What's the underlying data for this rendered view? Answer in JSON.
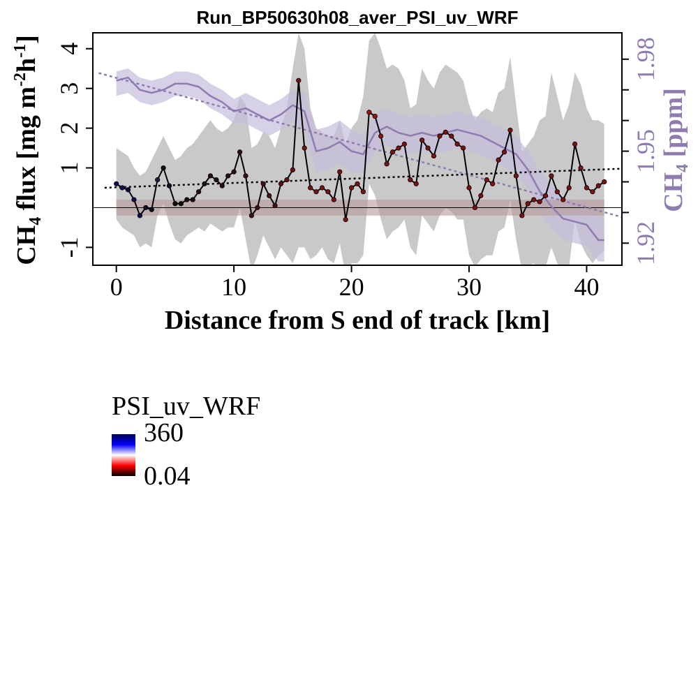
{
  "chart_data": {
    "type": "line",
    "title": "Run_BP50630h08_aver_PSI_uv_WRF",
    "xlabel": "Distance from S end of track [km]",
    "ylabel": "CH4 flux [mg m-2h-1]",
    "ylabel_parts": {
      "a": "CH",
      "a_sub": "4",
      "b": " flux [mg m",
      "b_sup": "-2",
      "c": "h",
      "c_sup": "-1",
      "d": "]"
    },
    "y2label": "CH4 [ppm]",
    "y2label_parts": {
      "a": "CH",
      "a_sub": "4",
      "b": " [ppm]"
    },
    "xlim": [
      -2,
      43
    ],
    "ylim": [
      -1.45,
      4.4
    ],
    "y2lim": [
      1.9128,
      1.9886
    ],
    "xticks": [
      "0",
      "10",
      "20",
      "30",
      "40"
    ],
    "xtick_values": [
      0,
      10,
      20,
      30,
      40
    ],
    "yticks": [
      "-1",
      "1",
      "2",
      "3",
      "4"
    ],
    "ytick_values": [
      -1,
      1,
      2,
      3,
      4
    ],
    "y2ticks": [
      "1.92",
      "1.95",
      "1.98"
    ],
    "y2tick_values": [
      1.92,
      1.95,
      1.98
    ],
    "grid": false,
    "series": [
      {
        "role": "flux",
        "x": [
          0,
          0.5,
          1,
          1.5,
          2,
          2.5,
          3,
          3.5,
          4,
          4.5,
          5,
          5.5,
          6,
          6.5,
          7,
          7.5,
          8,
          8.5,
          9,
          9.5,
          10,
          10.5,
          11,
          11.5,
          12,
          12.5,
          13,
          13.5,
          14,
          14.5,
          15,
          15.5,
          16,
          16.5,
          17,
          17.5,
          18,
          18.5,
          19,
          19.5,
          20,
          20.5,
          21,
          21.5,
          22,
          22.5,
          23,
          23.5,
          24,
          24.5,
          25,
          25.5,
          26,
          26.5,
          27,
          27.5,
          28,
          28.5,
          29,
          29.5,
          30,
          30.5,
          31,
          31.5,
          32,
          32.5,
          33,
          33.5,
          34,
          34.5,
          35,
          35.5,
          36,
          36.5,
          37,
          37.5,
          38,
          38.5,
          39,
          39.5,
          40,
          40.5,
          41,
          41.5
        ],
        "values": [
          0.6,
          0.5,
          0.45,
          0.2,
          -0.2,
          0.0,
          -0.05,
          0.7,
          1.0,
          0.55,
          0.1,
          0.1,
          0.2,
          0.2,
          0.4,
          0.6,
          0.8,
          0.7,
          0.55,
          0.8,
          0.9,
          1.4,
          0.8,
          -0.2,
          0.0,
          0.6,
          0.3,
          0.05,
          0.6,
          0.7,
          0.95,
          3.2,
          1.5,
          0.5,
          0.4,
          0.5,
          0.4,
          0.2,
          0.9,
          -0.3,
          0.5,
          0.6,
          0.4,
          2.4,
          2.3,
          1.8,
          1.1,
          1.4,
          1.5,
          1.6,
          0.7,
          0.6,
          1.7,
          1.5,
          1.3,
          1.8,
          1.9,
          1.8,
          1.6,
          1.5,
          0.5,
          0.0,
          0.3,
          0.7,
          0.6,
          1.2,
          1.4,
          1.95,
          0.8,
          -0.2,
          0.1,
          0.2,
          0.15,
          0.3,
          0.8,
          0.4,
          0.2,
          0.5,
          1.6,
          1.0,
          0.5,
          0.4,
          0.55,
          0.65
        ],
        "psi_colors": [
          "#0c0c5c",
          "#101060",
          "#0a0a3a",
          "#0c0c50",
          "#0c0c50",
          "#0a0a30",
          "#080820",
          "#202040",
          "#101020",
          "#101020",
          "#101010",
          "#101010",
          "#181010",
          "#181010",
          "#201010",
          "#201010",
          "#201010",
          "#201010",
          "#281010",
          "#281010",
          "#301010",
          "#301010",
          "#381010",
          "#401010",
          "#401010",
          "#481010",
          "#501010",
          "#501010",
          "#601010",
          "#681010",
          "#701010",
          "#781010",
          "#801010",
          "#801010",
          "#801010",
          "#801010",
          "#801010",
          "#801010",
          "#801010",
          "#801010",
          "#801010",
          "#801010",
          "#801010",
          "#a01010",
          "#a01010",
          "#901010",
          "#801010",
          "#801010",
          "#801010",
          "#801010",
          "#801010",
          "#801010",
          "#801010",
          "#801010",
          "#801010",
          "#801010",
          "#801010",
          "#801010",
          "#801010",
          "#801010",
          "#801010",
          "#801010",
          "#801010",
          "#801010",
          "#801010",
          "#801010",
          "#801010",
          "#801010",
          "#801010",
          "#801010",
          "#801010",
          "#801010",
          "#801010",
          "#801010",
          "#801010",
          "#801010",
          "#801010",
          "#801010",
          "#801010",
          "#801010",
          "#801010",
          "#801010",
          "#801010",
          "#801010"
        ],
        "upper": [
          1.5,
          1.4,
          1.3,
          1.0,
          0.8,
          0.9,
          1.2,
          1.5,
          1.8,
          1.5,
          1.2,
          1.3,
          1.5,
          1.6,
          1.8,
          2.0,
          2.2,
          2.0,
          1.9,
          2.0,
          2.2,
          2.8,
          2.6,
          1.5,
          1.6,
          1.9,
          1.8,
          1.5,
          2.0,
          2.5,
          3.5,
          4.4,
          4.0,
          2.5,
          2.0,
          1.9,
          1.8,
          1.8,
          2.2,
          1.6,
          2.0,
          2.2,
          2.8,
          4.2,
          4.4,
          4.0,
          3.5,
          3.6,
          3.5,
          3.2,
          2.5,
          2.6,
          3.5,
          3.2,
          3.0,
          3.4,
          3.6,
          3.5,
          3.4,
          3.2,
          2.6,
          2.2,
          2.4,
          2.5,
          2.4,
          2.9,
          3.0,
          3.8,
          2.6,
          1.4,
          1.6,
          1.8,
          2.2,
          2.3,
          3.4,
          2.8,
          2.2,
          2.6,
          3.4,
          3.1,
          2.5,
          2.2,
          2.2,
          2.1
        ],
        "lower": [
          -0.3,
          -0.5,
          -0.6,
          -0.7,
          -1.0,
          -0.9,
          -1.0,
          -0.2,
          0.1,
          -0.4,
          -0.8,
          -0.9,
          -0.7,
          -0.6,
          -0.5,
          -0.6,
          -0.4,
          -0.5,
          -0.6,
          -0.5,
          -0.5,
          0.0,
          -0.8,
          -1.6,
          -1.2,
          -0.7,
          -1.0,
          -1.3,
          -1.0,
          -1.2,
          -1.4,
          -1.0,
          -1.0,
          -1.3,
          -1.2,
          -1.0,
          -1.3,
          -1.4,
          -0.9,
          -1.7,
          -1.4,
          -1.4,
          -1.2,
          0.6,
          0.3,
          -0.3,
          -0.8,
          -0.6,
          -0.5,
          -0.3,
          -1.0,
          -1.2,
          -0.2,
          -0.4,
          -0.6,
          -0.2,
          0.0,
          -0.1,
          -0.3,
          -0.3,
          -1.2,
          -1.5,
          -1.3,
          -1.2,
          -1.2,
          -0.6,
          -0.5,
          0.2,
          -0.8,
          -1.6,
          -1.5,
          -1.4,
          -1.6,
          -1.5,
          -1.0,
          -1.4,
          -1.8,
          -1.5,
          -0.3,
          -0.9,
          -1.2,
          -1.4,
          -1.2,
          -1.1
        ]
      },
      {
        "role": "ch4_concentration",
        "axis": "right",
        "x": [
          0,
          1,
          2,
          3,
          4,
          5,
          6,
          7,
          8,
          9,
          10,
          11,
          12,
          13,
          14,
          15,
          16,
          17,
          18,
          19,
          20,
          21,
          22,
          23,
          24,
          25,
          26,
          27,
          28,
          29,
          30,
          31,
          32,
          33,
          34,
          35,
          36,
          37,
          38,
          39,
          40,
          41,
          41.5
        ],
        "values": [
          1.973,
          1.974,
          1.97,
          1.969,
          1.97,
          1.972,
          1.972,
          1.971,
          1.968,
          1.966,
          1.963,
          1.964,
          1.962,
          1.96,
          1.962,
          1.965,
          1.963,
          1.95,
          1.951,
          1.953,
          1.95,
          1.949,
          1.956,
          1.958,
          1.956,
          1.955,
          1.956,
          1.955,
          1.956,
          1.957,
          1.956,
          1.955,
          1.953,
          1.951,
          1.949,
          1.944,
          1.937,
          1.932,
          1.928,
          1.927,
          1.926,
          1.921,
          1.921
        ],
        "upper": [
          1.976,
          1.977,
          1.974,
          1.973,
          1.974,
          1.976,
          1.976,
          1.975,
          1.972,
          1.97,
          1.967,
          1.969,
          1.967,
          1.965,
          1.967,
          1.97,
          1.969,
          1.957,
          1.958,
          1.96,
          1.957,
          1.955,
          1.962,
          1.964,
          1.962,
          1.961,
          1.962,
          1.961,
          1.962,
          1.963,
          1.962,
          1.961,
          1.959,
          1.957,
          1.955,
          1.95,
          1.944,
          1.939,
          1.935,
          1.934,
          1.933,
          1.929,
          1.928
        ],
        "lower": [
          1.968,
          1.969,
          1.966,
          1.965,
          1.966,
          1.968,
          1.968,
          1.967,
          1.964,
          1.962,
          1.959,
          1.959,
          1.957,
          1.955,
          1.957,
          1.96,
          1.957,
          1.943,
          1.944,
          1.946,
          1.943,
          1.943,
          1.95,
          1.952,
          1.95,
          1.949,
          1.95,
          1.949,
          1.95,
          1.951,
          1.95,
          1.949,
          1.947,
          1.945,
          1.943,
          1.938,
          1.93,
          1.925,
          1.921,
          1.92,
          1.919,
          1.914,
          1.914
        ],
        "color": "#8e7cb0"
      }
    ],
    "flux_trend": {
      "x": [
        -1,
        43
      ],
      "values": [
        0.5,
        0.98
      ]
    },
    "ch4_trend": {
      "x": [
        -1.5,
        43
      ],
      "values": [
        1.9755,
        1.9285
      ]
    },
    "zero_band": {
      "lower": -0.2,
      "upper": 0.2
    },
    "colors": {
      "band": "#c9c9c9",
      "ch4": "#8e7cb0",
      "ch4_band": "#c5bedb",
      "zero_band": "#b89a9a"
    },
    "legend": {
      "title": "PSI_uv_WRF",
      "max_label": "360",
      "min_label": "0.04",
      "placement": "bottom-left",
      "gradient": [
        "#000000",
        "#ff0000",
        "#ffffff",
        "#0000ff",
        "#000050"
      ]
    }
  }
}
